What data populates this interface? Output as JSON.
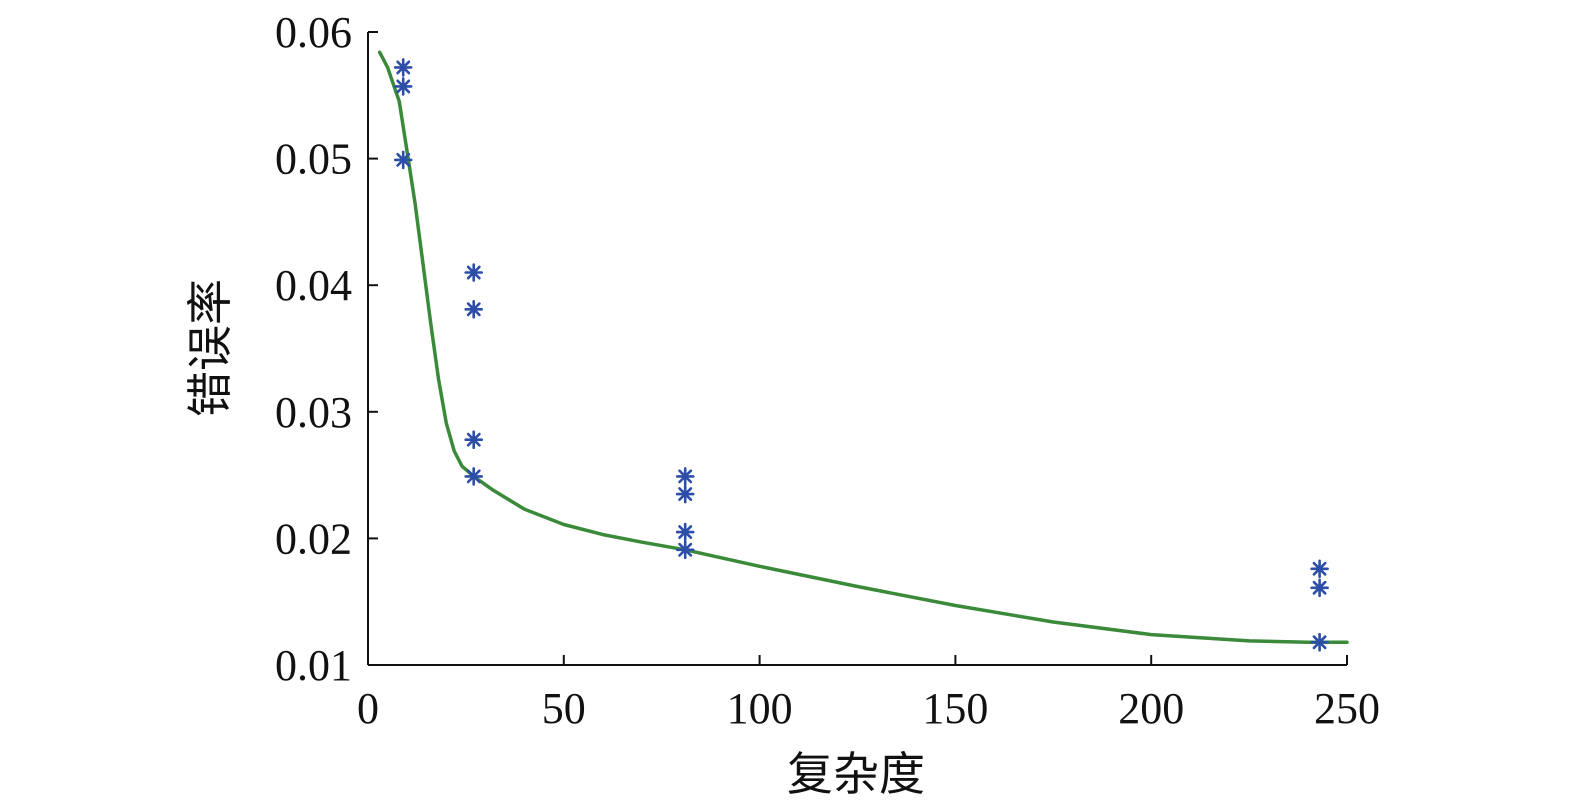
{
  "chart_data": {
    "type": "scatter",
    "title": "",
    "xlabel": "复杂度",
    "ylabel": "错误率",
    "xlim": [
      0,
      250
    ],
    "ylim": [
      0.01,
      0.06
    ],
    "xticks": [
      0,
      50,
      100,
      150,
      200,
      250
    ],
    "xtick_labels": [
      "0",
      "50",
      "100",
      "150",
      "200",
      "250"
    ],
    "yticks": [
      0.01,
      0.02,
      0.03,
      0.04,
      0.05,
      0.06
    ],
    "ytick_labels": [
      "0.01",
      "0.02",
      "0.03",
      "0.04",
      "0.05",
      "0.06"
    ],
    "grid": false,
    "legend": "none",
    "series": [
      {
        "kind": "scatter",
        "marker": "asterisk",
        "color": "#2c4ea8",
        "points": [
          [
            9,
            0.0572
          ],
          [
            9,
            0.0557
          ],
          [
            9,
            0.0499
          ],
          [
            27,
            0.041
          ],
          [
            27,
            0.0381
          ],
          [
            27,
            0.0278
          ],
          [
            27,
            0.0249
          ],
          [
            81,
            0.0249
          ],
          [
            81,
            0.0235
          ],
          [
            81,
            0.0205
          ],
          [
            81,
            0.0191
          ],
          [
            243,
            0.0176
          ],
          [
            243,
            0.0161
          ],
          [
            243,
            0.0118
          ]
        ]
      },
      {
        "kind": "line",
        "color": "#3a8a3a",
        "points": [
          [
            3,
            0.0584
          ],
          [
            5,
            0.0572
          ],
          [
            8,
            0.0545
          ],
          [
            10,
            0.0505
          ],
          [
            12,
            0.0465
          ],
          [
            14,
            0.0418
          ],
          [
            16,
            0.037
          ],
          [
            18,
            0.0326
          ],
          [
            20,
            0.0291
          ],
          [
            22,
            0.0269
          ],
          [
            24,
            0.0257
          ],
          [
            27,
            0.0249
          ],
          [
            32,
            0.0238
          ],
          [
            40,
            0.0223
          ],
          [
            50,
            0.0211
          ],
          [
            60,
            0.0203
          ],
          [
            70,
            0.0197
          ],
          [
            81,
            0.0191
          ],
          [
            100,
            0.0178
          ],
          [
            125,
            0.0162
          ],
          [
            150,
            0.0147
          ],
          [
            175,
            0.0134
          ],
          [
            200,
            0.0124
          ],
          [
            225,
            0.0119
          ],
          [
            240,
            0.0118
          ],
          [
            250,
            0.0118
          ]
        ]
      }
    ]
  }
}
